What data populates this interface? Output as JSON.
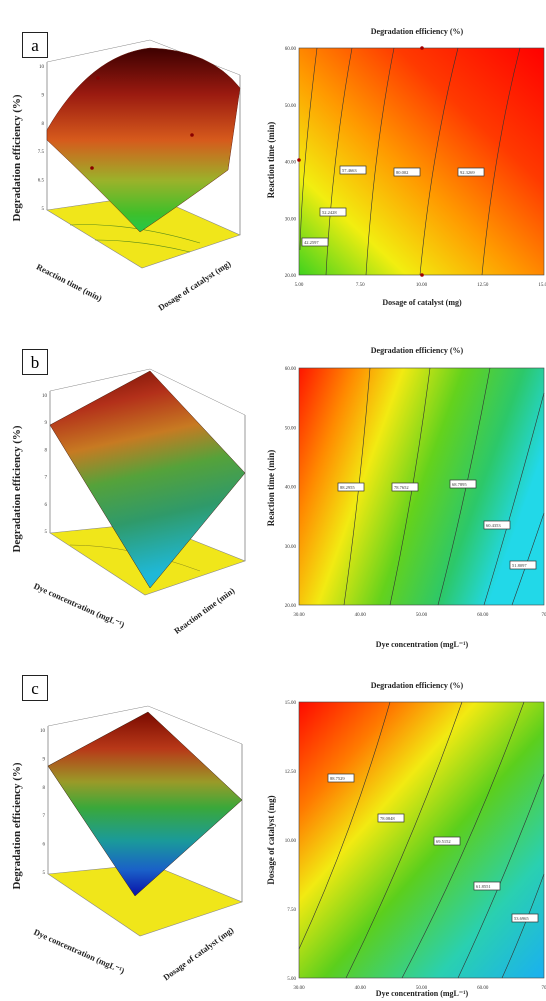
{
  "chart_data": [
    {
      "panel": "a",
      "type": "surface3d",
      "zlabel": "Degradation efficiency (%)",
      "xlabel": "Reaction time (min)",
      "ylabel": "Dosage of catalyst (mg)",
      "z_ticks": [
        "5",
        "6.5",
        "7.5",
        "8",
        "9",
        "10"
      ]
    },
    {
      "panel": "a",
      "type": "contour",
      "title": "Degradation efficiency (%)",
      "xlabel": "Dosage of catalyst (mg)",
      "ylabel": "Reaction time (min)",
      "x_ticks": [
        "5.00",
        "7.50",
        "10.00",
        "12.50",
        "15.00"
      ],
      "y_ticks": [
        "20.00",
        "30.00",
        "40.00",
        "50.00",
        "60.00"
      ],
      "contour_labels": [
        "42.2597",
        "52.2428",
        "57.4663",
        "80.002",
        "92.3269"
      ]
    },
    {
      "panel": "b",
      "type": "surface3d",
      "zlabel": "Degradation efficiency (%)",
      "xlabel": "Dye concentration (mgL⁻¹)",
      "ylabel": "Reaction time (min)",
      "z_ticks": [
        "5",
        "6",
        "7",
        "8",
        "9",
        "10"
      ]
    },
    {
      "panel": "b",
      "type": "contour",
      "title": "Degradation efficiency (%)",
      "xlabel": "Dye concentration (mgL⁻¹)",
      "ylabel": "Reaction time (min)",
      "x_ticks": [
        "30.00",
        "40.00",
        "50.00",
        "60.00",
        "70"
      ],
      "y_ticks": [
        "20.00",
        "30.00",
        "40.00",
        "50.00",
        "60.00"
      ],
      "contour_labels": [
        "88.2955",
        "78.7652",
        "68.7895",
        "60.4353",
        "51.8097"
      ]
    },
    {
      "panel": "c",
      "type": "surface3d",
      "zlabel": "Degradation efficiency (%)",
      "xlabel": "Dye concentration (mgL⁻¹)",
      "ylabel": "Dosage of catalyst (mg)",
      "z_ticks": [
        "5",
        "6",
        "7",
        "8",
        "9",
        "10"
      ]
    },
    {
      "panel": "c",
      "type": "contour",
      "title": "Degradation efficiency (%)",
      "xlabel": "Dye concentration (mgL⁻¹)",
      "ylabel": "Dosage of catalyst (mg)",
      "x_ticks": [
        "30.00",
        "40.00",
        "50.00",
        "60.00",
        "70"
      ],
      "y_ticks": [
        "5.00",
        "7.50",
        "10.00",
        "12.50",
        "15.00"
      ],
      "contour_labels": [
        "88.7529",
        "78.0848",
        "69.5152",
        "61.8551",
        "53.6965"
      ]
    }
  ],
  "panels": [
    {
      "letter": "a"
    },
    {
      "letter": "b"
    },
    {
      "letter": "c"
    }
  ]
}
